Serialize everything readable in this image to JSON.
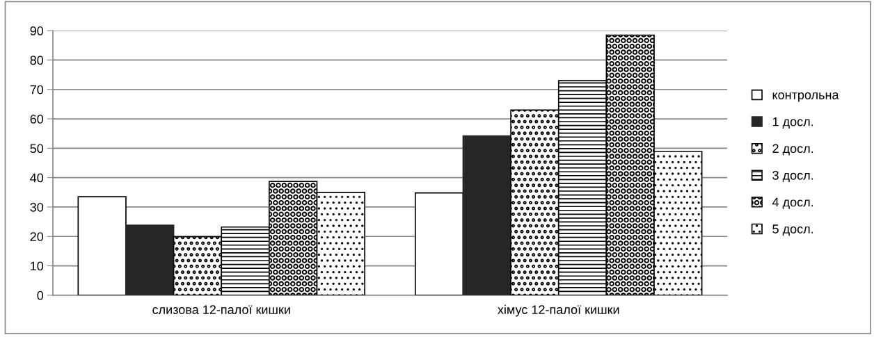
{
  "chart_data": {
    "type": "bar",
    "categories": [
      "слизова 12-палої кишки",
      "хімус 12-палої кишки"
    ],
    "series": [
      {
        "name": "контрольна",
        "color": "#000000",
        "values": [
          33.5,
          34.8
        ]
      },
      {
        "name": "1 досл.",
        "color": "#262626",
        "values": [
          23.8,
          54.2
        ]
      },
      {
        "name": "2 досл.",
        "color": "#000000",
        "values": [
          19.9,
          63.0
        ]
      },
      {
        "name": "3 досл.",
        "color": "#000000",
        "values": [
          23.2,
          73.0
        ]
      },
      {
        "name": "4 досл.",
        "color": "#000000",
        "values": [
          38.7,
          88.5
        ]
      },
      {
        "name": "5 досл.",
        "color": "#000000",
        "values": [
          35.0,
          48.9
        ]
      }
    ],
    "ylim": [
      0,
      90
    ],
    "yticks": [
      0,
      10,
      20,
      30,
      40,
      50,
      60,
      70,
      80,
      90
    ],
    "grid": "y",
    "legend": "right"
  }
}
